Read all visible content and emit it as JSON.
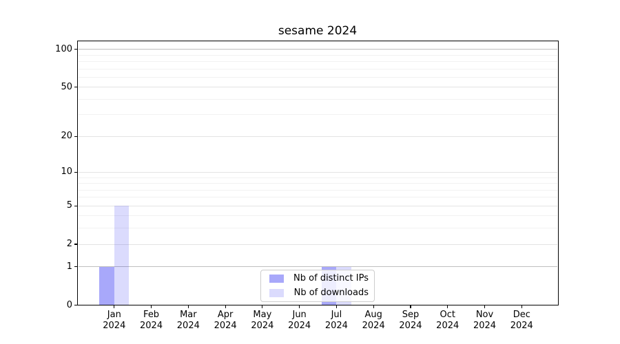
{
  "chart_data": {
    "type": "bar",
    "title": "sesame 2024",
    "categories": [
      "Jan",
      "Feb",
      "Mar",
      "Apr",
      "May",
      "Jun",
      "Jul",
      "Aug",
      "Sep",
      "Oct",
      "Nov",
      "Dec"
    ],
    "x_year_label": "2024",
    "series": [
      {
        "name": "Nb of distinct IPs",
        "color": "rgba(0,0,240,0.34)",
        "values": [
          1,
          0,
          0,
          0,
          0,
          0,
          1,
          0,
          0,
          0,
          0,
          0
        ]
      },
      {
        "name": "Nb of downloads",
        "color": "rgba(0,0,240,0.14)",
        "values": [
          5,
          0,
          0,
          0,
          0,
          0,
          1,
          0,
          0,
          0,
          0,
          0
        ]
      }
    ],
    "y_scale": "log1p",
    "y_ticks": [
      0,
      1,
      2,
      5,
      10,
      20,
      50,
      100
    ],
    "y_minor_gridlines": [
      3,
      4,
      6,
      7,
      8,
      9,
      30,
      40,
      60,
      70,
      80,
      90
    ],
    "emphasized_gridlines": [
      1,
      100
    ],
    "ylim": [
      0,
      117
    ],
    "grid": true,
    "legend_position": "lower center",
    "colors": {
      "grid_major": "#e3e3e3",
      "grid_minor": "#f1f1f1",
      "grid_emphasis": "#bfbfbf",
      "spine": "#000000",
      "background": "#ffffff",
      "legend_border": "#cccccc",
      "text": "#000000"
    }
  }
}
